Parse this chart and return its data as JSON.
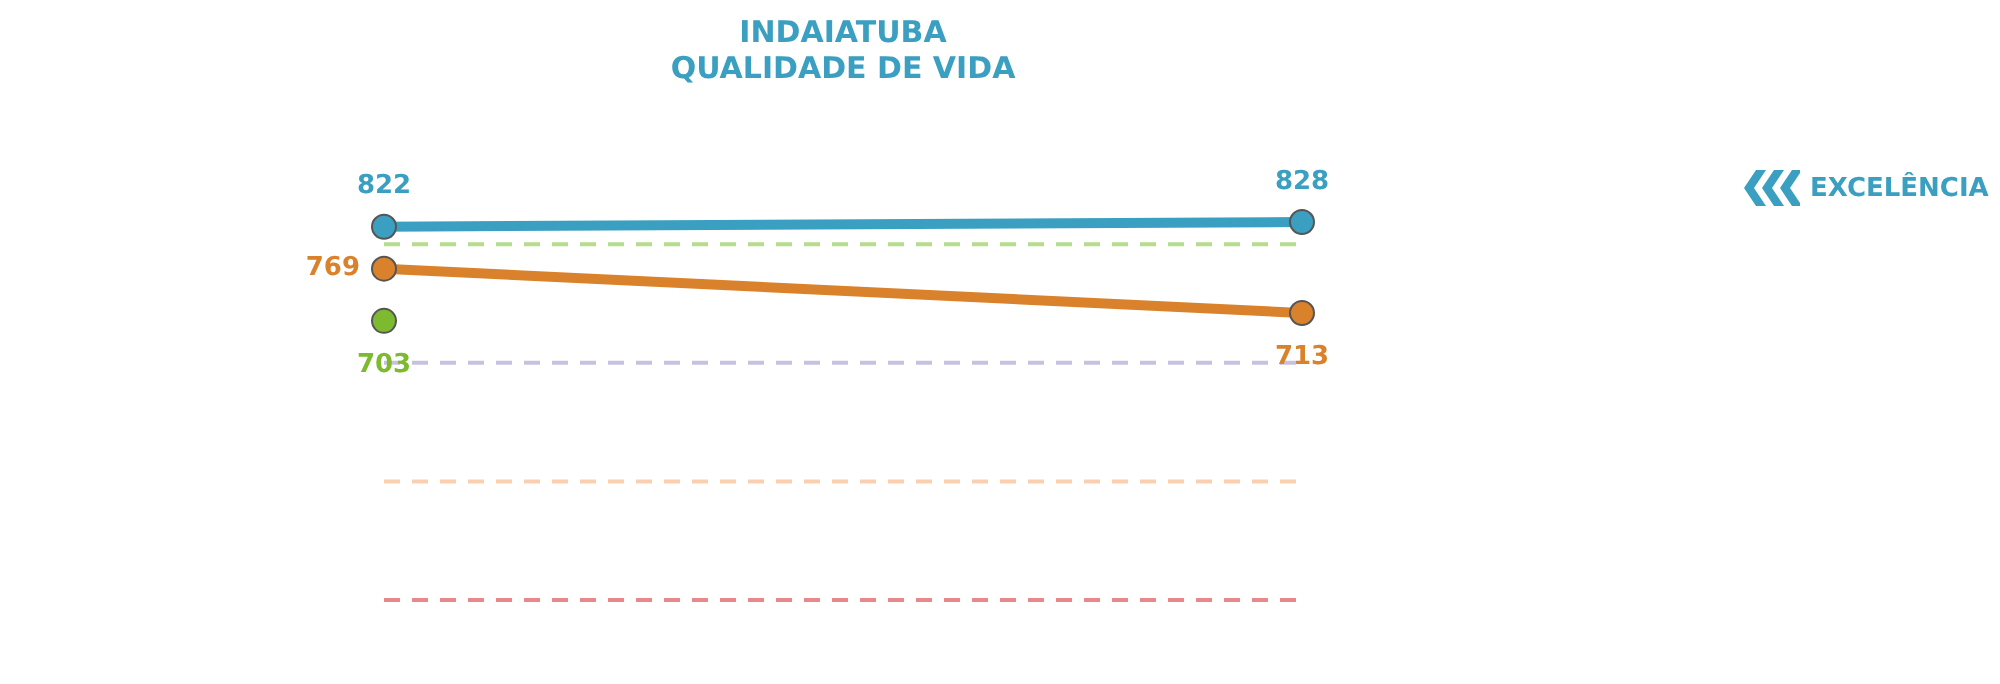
{
  "chart_data": {
    "type": "line",
    "title": [
      "INDAIATUBA",
      "QUALIDADE DE VIDA"
    ],
    "categories": [
      null,
      null
    ],
    "series": [
      {
        "color": "#3a9fc0",
        "values": [
          822,
          828
        ]
      },
      {
        "color": "#d9822b",
        "values": [
          769,
          713
        ]
      },
      {
        "color": "#7dba2f",
        "values": [
          703,
          null
        ]
      }
    ],
    "legend": false,
    "marker": "circle",
    "data_labels": true,
    "ref_lines": [
      {
        "axis": "y",
        "value": 800,
        "color": "#b5dd8c",
        "line_style": "dashed"
      },
      {
        "axis": "y",
        "value": 650,
        "color": "#c8c0e0",
        "line_style": "dashed"
      },
      {
        "axis": "y",
        "value": 500,
        "color": "#fbd0b0",
        "line_style": "dashed"
      },
      {
        "axis": "y",
        "value": 350,
        "color": "#e8888a",
        "line_style": "dashed"
      }
    ],
    "annotations": [
      "EXCELÊNCIA"
    ]
  }
}
